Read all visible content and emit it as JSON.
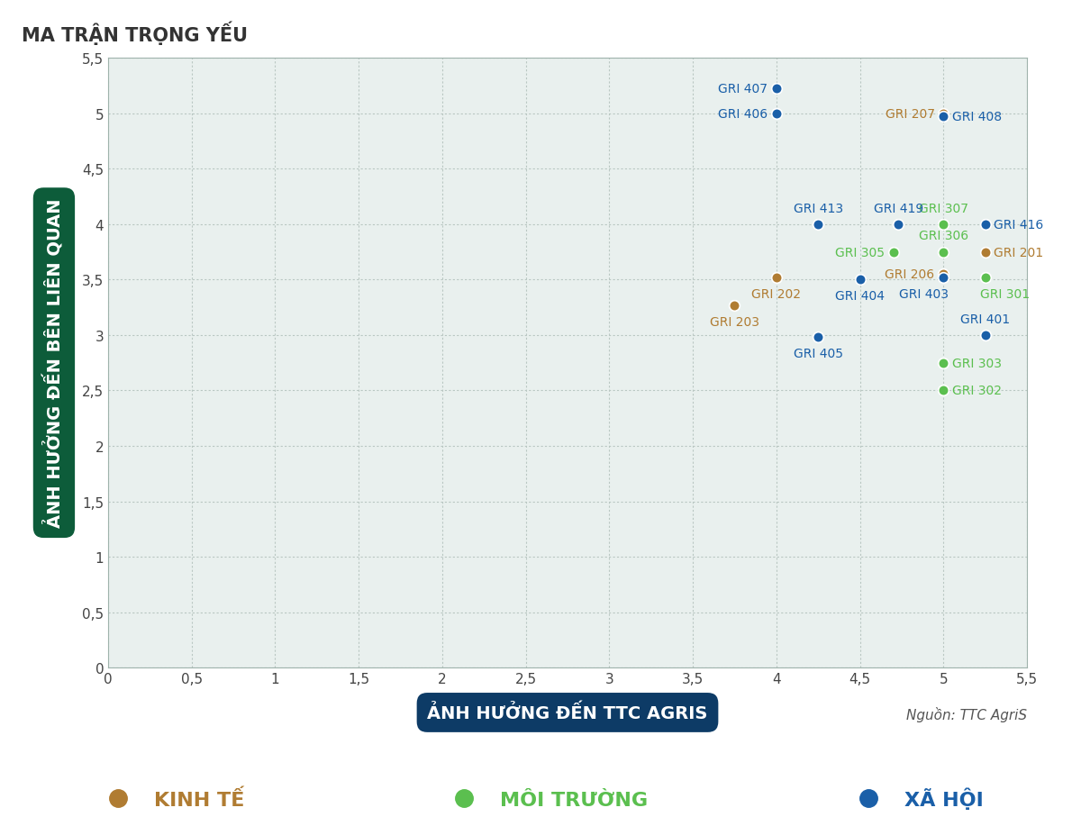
{
  "chart_data": {
    "type": "scatter",
    "title": "MA TRẬN TRỌNG YẾU",
    "x_label": "ẢNH HƯỞNG ĐẾN TTC AGRIS",
    "y_label": "ẢNH HƯỞNG ĐẾN BÊN LIÊN QUAN",
    "source": "Nguồn: TTC AgriS",
    "xlim": [
      0,
      5.5
    ],
    "ylim": [
      0,
      5.5
    ],
    "xticks": [
      0,
      {
        "value": 0.5,
        "label": "0,5"
      },
      1,
      {
        "value": 1.5,
        "label": "1,5"
      },
      2,
      {
        "value": 2.5,
        "label": "2,5"
      },
      3,
      {
        "value": 3.5,
        "label": "3,5"
      },
      4,
      {
        "value": 4.5,
        "label": "4,5"
      },
      5,
      {
        "value": 5.5,
        "label": "5,5"
      }
    ],
    "yticks": [
      0,
      {
        "value": 0.5,
        "label": "0,5"
      },
      1,
      {
        "value": 1.5,
        "label": "1,5"
      },
      2,
      {
        "value": 2.5,
        "label": "2,5"
      },
      3,
      {
        "value": 3.5,
        "label": "3,5"
      },
      4,
      {
        "value": 4.5,
        "label": "4,5"
      },
      5,
      {
        "value": 5.5,
        "label": "5,5"
      }
    ],
    "grid": true,
    "legend": "lower center",
    "marker": "o",
    "series": [
      {
        "name": "KINH TẾ",
        "color": "#b07c32",
        "x": [
          5,
          5.25,
          5,
          4,
          3.75
        ],
        "values": [
          5,
          3.75,
          3.55,
          3.52,
          3.27
        ],
        "labels": [
          "GRI 207",
          "GRI 201",
          "GRI 206",
          "GRI 202",
          "GRI 203"
        ]
      },
      {
        "name": "MÔI TRƯỜNG",
        "color": "#5bbf4f",
        "x": [
          5,
          4.7,
          5,
          5.25,
          5,
          5
        ],
        "values": [
          4,
          3.75,
          3.75,
          3.52,
          2.75,
          2.5
        ],
        "labels": [
          "GRI 307",
          "GRI 305",
          "GRI 306",
          "GRI 301",
          "GRI 303",
          "GRI 302"
        ]
      },
      {
        "name": "XÃ HỘI",
        "color": "#1a5fa8",
        "x": [
          4,
          4,
          5,
          4.25,
          4.73,
          5.25,
          4.5,
          5,
          5.25,
          4.25
        ],
        "values": [
          5.22,
          5,
          4.97,
          4,
          4,
          4,
          3.5,
          3.52,
          3,
          2.98
        ],
        "labels": [
          "GRI 407",
          "GRI 406",
          "GRI 408",
          "GRI 413",
          "GRI 419",
          "GRI 416",
          "GRI 404",
          "GRI 403",
          "GRI 401",
          "GRI 405"
        ]
      }
    ]
  }
}
